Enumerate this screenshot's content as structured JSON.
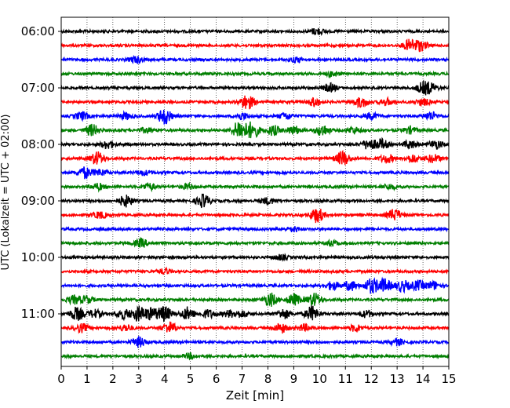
{
  "chart_data": {
    "type": "line",
    "title": "",
    "xlabel": "Zeit  [min]",
    "ylabel": "UTC (Lokalzeit = UTC + 02:00)",
    "xlim": [
      0,
      15
    ],
    "x_ticks": [
      0,
      1,
      2,
      3,
      4,
      5,
      6,
      7,
      8,
      9,
      10,
      11,
      12,
      13,
      14,
      15
    ],
    "x_tick_labels": [
      "0",
      "1",
      "2",
      "3",
      "4",
      "5",
      "6",
      "7",
      "8",
      "9",
      "10",
      "11",
      "12",
      "13",
      "14",
      "15"
    ],
    "y_tick_labels": [
      "06:00",
      "07:00",
      "08:00",
      "09:00",
      "10:00",
      "11:00"
    ],
    "trace_interval_minutes": 15,
    "grid": "vertical dotted lines at every minute",
    "colors_cycle": [
      "#000000",
      "#ff0000",
      "#0000ff",
      "#007f00"
    ],
    "traces": [
      {
        "start": "06:00",
        "color": "#000000",
        "events": [
          {
            "t": 9.9,
            "a": 4
          }
        ]
      },
      {
        "start": "06:15",
        "color": "#ff0000",
        "events": [
          {
            "t": 13.5,
            "a": 7
          },
          {
            "t": 13.9,
            "a": 6
          }
        ]
      },
      {
        "start": "06:30",
        "color": "#0000ff",
        "events": [
          {
            "t": 2.9,
            "a": 4
          },
          {
            "t": 9.1,
            "a": 3
          }
        ]
      },
      {
        "start": "06:45",
        "color": "#007f00",
        "events": [
          {
            "t": 10.5,
            "a": 3
          }
        ]
      },
      {
        "start": "07:00",
        "color": "#000000",
        "events": [
          {
            "t": 10.4,
            "a": 5
          },
          {
            "t": 14.0,
            "a": 6
          },
          {
            "t": 14.3,
            "a": 5
          }
        ]
      },
      {
        "start": "07:15",
        "color": "#ff0000",
        "events": [
          {
            "t": 7.2,
            "a": 9
          },
          {
            "t": 9.8,
            "a": 5
          },
          {
            "t": 11.6,
            "a": 6
          },
          {
            "t": 12.6,
            "a": 4
          },
          {
            "t": 14.0,
            "a": 4
          }
        ]
      },
      {
        "start": "07:30",
        "color": "#0000ff",
        "events": [
          {
            "t": 0.8,
            "a": 5
          },
          {
            "t": 4.0,
            "a": 10
          },
          {
            "t": 2.5,
            "a": 4
          },
          {
            "t": 7.0,
            "a": 4
          },
          {
            "t": 8.7,
            "a": 4
          },
          {
            "t": 12.0,
            "a": 4
          },
          {
            "t": 14.3,
            "a": 5
          }
        ]
      },
      {
        "start": "07:45",
        "color": "#007f00",
        "events": [
          {
            "t": 1.2,
            "a": 7
          },
          {
            "t": 3.3,
            "a": 3
          },
          {
            "t": 6.9,
            "a": 12
          },
          {
            "t": 7.4,
            "a": 10
          },
          {
            "t": 8.2,
            "a": 6
          },
          {
            "t": 9.0,
            "a": 5
          },
          {
            "t": 10.1,
            "a": 7
          },
          {
            "t": 11.3,
            "a": 4
          },
          {
            "t": 13.5,
            "a": 4
          }
        ]
      },
      {
        "start": "08:00",
        "color": "#000000",
        "events": [
          {
            "t": 1.8,
            "a": 5
          },
          {
            "t": 11.9,
            "a": 6
          },
          {
            "t": 12.4,
            "a": 6
          },
          {
            "t": 13.5,
            "a": 5
          },
          {
            "t": 14.5,
            "a": 5
          }
        ]
      },
      {
        "start": "08:15",
        "color": "#ff0000",
        "events": [
          {
            "t": 1.4,
            "a": 8
          },
          {
            "t": 10.9,
            "a": 9
          },
          {
            "t": 12.6,
            "a": 5
          },
          {
            "t": 13.6,
            "a": 5
          },
          {
            "t": 14.4,
            "a": 5
          }
        ]
      },
      {
        "start": "08:30",
        "color": "#0000ff",
        "events": [
          {
            "t": 0.9,
            "a": 7
          },
          {
            "t": 1.5,
            "a": 4
          },
          {
            "t": 3.2,
            "a": 3
          }
        ]
      },
      {
        "start": "08:45",
        "color": "#007f00",
        "events": [
          {
            "t": 1.4,
            "a": 4
          },
          {
            "t": 3.4,
            "a": 4
          },
          {
            "t": 4.9,
            "a": 3
          },
          {
            "t": 12.7,
            "a": 3
          }
        ]
      },
      {
        "start": "09:00",
        "color": "#000000",
        "events": [
          {
            "t": 2.5,
            "a": 7
          },
          {
            "t": 5.5,
            "a": 8
          },
          {
            "t": 8.0,
            "a": 4
          }
        ]
      },
      {
        "start": "09:15",
        "color": "#ff0000",
        "events": [
          {
            "t": 1.5,
            "a": 4
          },
          {
            "t": 9.9,
            "a": 9
          },
          {
            "t": 12.9,
            "a": 7
          }
        ]
      },
      {
        "start": "09:30",
        "color": "#0000ff",
        "events": [
          {
            "t": 9.0,
            "a": 3
          }
        ]
      },
      {
        "start": "09:45",
        "color": "#007f00",
        "events": [
          {
            "t": 3.1,
            "a": 5
          },
          {
            "t": 10.5,
            "a": 3
          }
        ]
      },
      {
        "start": "10:00",
        "color": "#000000",
        "events": [
          {
            "t": 8.5,
            "a": 3
          }
        ]
      },
      {
        "start": "10:15",
        "color": "#ff0000",
        "events": [
          {
            "t": 4.0,
            "a": 3
          }
        ]
      },
      {
        "start": "10:30",
        "color": "#0000ff",
        "events": [
          {
            "t": 10.5,
            "a": 5
          },
          {
            "t": 11.2,
            "a": 6
          },
          {
            "t": 12.0,
            "a": 9
          },
          {
            "t": 12.5,
            "a": 8
          },
          {
            "t": 13.2,
            "a": 7
          },
          {
            "t": 13.8,
            "a": 6
          },
          {
            "t": 14.4,
            "a": 5
          }
        ]
      },
      {
        "start": "10:45",
        "color": "#007f00",
        "events": [
          {
            "t": 0.5,
            "a": 5
          },
          {
            "t": 1.0,
            "a": 4
          },
          {
            "t": 8.1,
            "a": 8
          },
          {
            "t": 9.0,
            "a": 7
          },
          {
            "t": 9.8,
            "a": 8
          }
        ]
      },
      {
        "start": "11:00",
        "color": "#000000",
        "events": [
          {
            "t": 0.6,
            "a": 8
          },
          {
            "t": 1.3,
            "a": 5
          },
          {
            "t": 2.4,
            "a": 6
          },
          {
            "t": 3.0,
            "a": 9
          },
          {
            "t": 3.5,
            "a": 7
          },
          {
            "t": 4.0,
            "a": 9
          },
          {
            "t": 4.9,
            "a": 8
          },
          {
            "t": 5.7,
            "a": 5
          },
          {
            "t": 6.5,
            "a": 4
          },
          {
            "t": 7.0,
            "a": 4
          },
          {
            "t": 8.6,
            "a": 6
          },
          {
            "t": 9.7,
            "a": 9
          },
          {
            "t": 11.8,
            "a": 4
          }
        ]
      },
      {
        "start": "11:15",
        "color": "#ff0000",
        "events": [
          {
            "t": 0.8,
            "a": 5
          },
          {
            "t": 2.5,
            "a": 4
          },
          {
            "t": 4.2,
            "a": 7
          },
          {
            "t": 8.5,
            "a": 6
          },
          {
            "t": 9.4,
            "a": 4
          },
          {
            "t": 11.4,
            "a": 4
          }
        ]
      },
      {
        "start": "11:30",
        "color": "#0000ff",
        "events": [
          {
            "t": 3.0,
            "a": 6
          },
          {
            "t": 13.0,
            "a": 4
          }
        ]
      },
      {
        "start": "11:45",
        "color": "#007f00",
        "events": [
          {
            "t": 5.0,
            "a": 3
          }
        ]
      }
    ]
  }
}
